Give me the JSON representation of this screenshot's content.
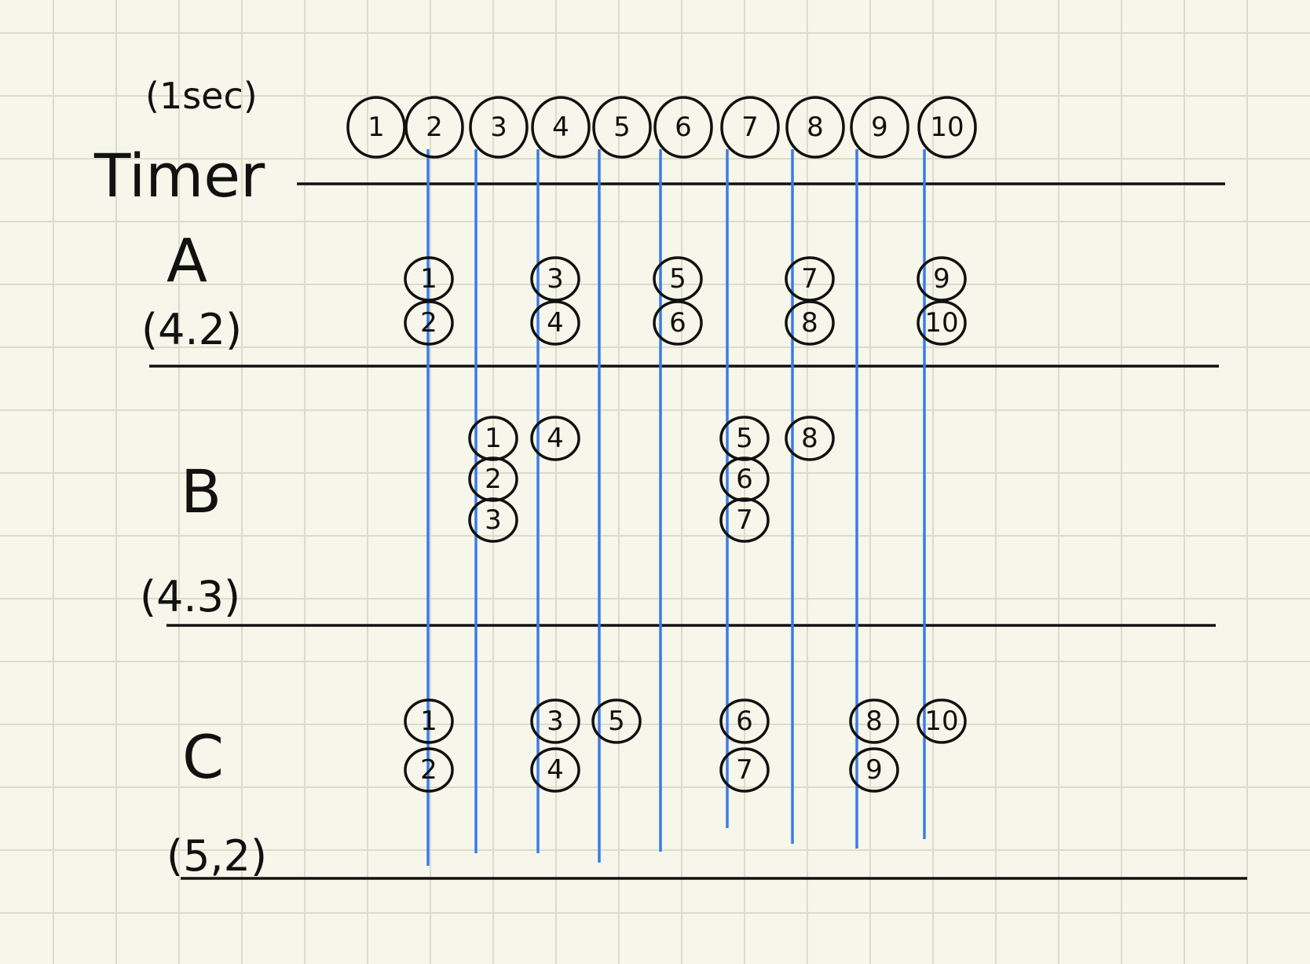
{
  "header": {
    "unit": "(1sec)",
    "timer_label": "Timer",
    "timer_ticks": [
      "1",
      "2",
      "3",
      "4",
      "5",
      "6",
      "7",
      "8",
      "9",
      "10"
    ]
  },
  "rows": [
    {
      "id": "a",
      "label": "A",
      "params": "(4.2)",
      "columns": [
        {
          "tick": 1,
          "items": [
            "1",
            "2"
          ]
        },
        {
          "tick": 3,
          "items": [
            "3",
            "4"
          ]
        },
        {
          "tick": 5,
          "items": [
            "5",
            "6"
          ]
        },
        {
          "tick": 7,
          "items": [
            "7",
            "8"
          ]
        },
        {
          "tick": 9,
          "items": [
            "9",
            "10"
          ]
        }
      ]
    },
    {
      "id": "b",
      "label": "B",
      "params": "(4.3)",
      "columns": [
        {
          "tick": 2,
          "items": [
            "1",
            "2",
            "3"
          ]
        },
        {
          "tick": 3,
          "items": [
            "4"
          ]
        },
        {
          "tick": 6,
          "items": [
            "5",
            "6",
            "7"
          ]
        },
        {
          "tick": 7,
          "items": [
            "8"
          ]
        }
      ]
    },
    {
      "id": "c",
      "label": "C",
      "params": "(5,2)",
      "columns": [
        {
          "tick": 1,
          "items": [
            "1",
            "2"
          ]
        },
        {
          "tick": 3,
          "items": [
            "3",
            "4"
          ]
        },
        {
          "tick": 4,
          "items": [
            "5"
          ]
        },
        {
          "tick": 6,
          "items": [
            "6",
            "7"
          ]
        },
        {
          "tick": 8,
          "items": [
            "8",
            "9"
          ]
        },
        {
          "tick": 9,
          "items": [
            "10"
          ]
        }
      ]
    }
  ],
  "colors": {
    "paper": "#f6f6ea",
    "grid": "#dcdccb",
    "ink": "#111111",
    "tick_lines": "#3a7be8"
  }
}
